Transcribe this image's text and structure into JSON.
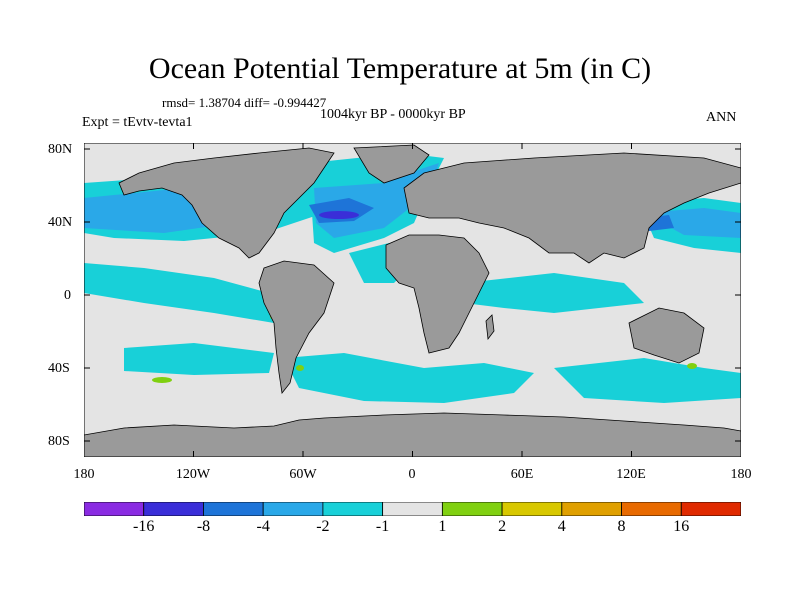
{
  "title": "Ocean Potential Temperature at 5m (in C)",
  "stats": "rmsd= 1.38704 diff= -0.994427",
  "period": "1004kyr BP - 0000kyr BP",
  "experiment": "Expt = tEvtv-tevta1",
  "season": "ANN",
  "lat_labels": [
    "80N",
    "40N",
    "0",
    "40S",
    "80S"
  ],
  "lon_labels": [
    "180",
    "120W",
    "60W",
    "0",
    "60E",
    "120E",
    "180"
  ],
  "colorbar": {
    "levels": [
      "-16",
      "-8",
      "-4",
      "-2",
      "-1",
      "1",
      "2",
      "4",
      "8",
      "16"
    ],
    "colors": [
      "#8a2be2",
      "#3a2ed8",
      "#1e74d8",
      "#2aa8e8",
      "#18d0d8",
      "#e4e4e4",
      "#80d010",
      "#d8c800",
      "#e0a000",
      "#e86a00",
      "#e02a00"
    ]
  },
  "colors": {
    "land": "#9a9a9a",
    "ocean_neutral": "#e4e4e4",
    "cool_light": "#18d0d8",
    "cool_mid": "#2aa8e8",
    "cool_strong": "#1e74d8",
    "cool_deep": "#3a2ed8",
    "warm_slight": "#80d010"
  }
}
